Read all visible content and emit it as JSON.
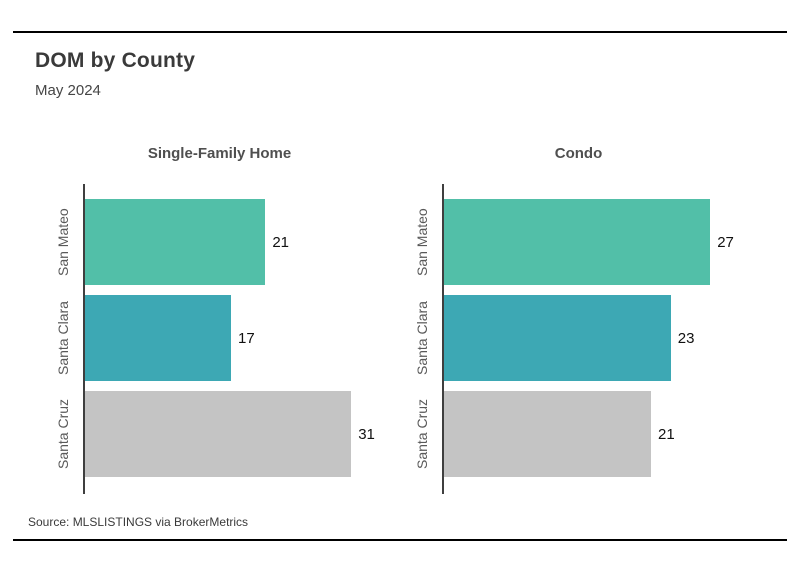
{
  "header": {
    "title": "DOM by County",
    "subtitle": "May 2024"
  },
  "footer": {
    "source": "Source:  MLSLISTINGS via BrokerMetrics"
  },
  "chart_data": {
    "type": "bar",
    "orientation": "horizontal",
    "categories": [
      "San Mateo",
      "Santa Clara",
      "Santa Cruz"
    ],
    "panels": [
      {
        "title": "Single-Family Home",
        "values": [
          21,
          17,
          31
        ]
      },
      {
        "title": "Condo",
        "values": [
          27,
          23,
          21
        ]
      }
    ],
    "bar_colors": [
      "#52BFA8",
      "#3DA8B4",
      "#C4C4C4"
    ],
    "axis_color": "#3F3F3F",
    "value_label_color": "#111111",
    "grid": false,
    "legend": false,
    "value_labels_position": "right-of-bar",
    "max_bar_fraction": 0.87
  }
}
